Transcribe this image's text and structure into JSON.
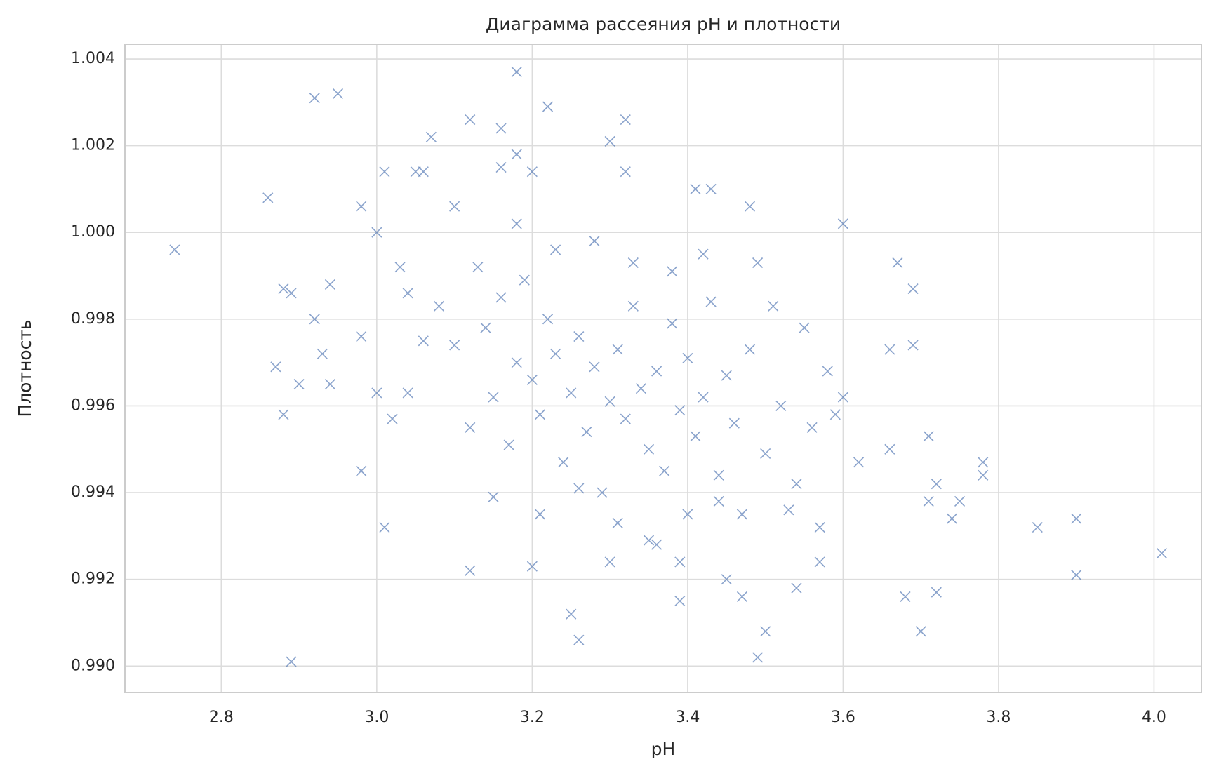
{
  "chart_data": {
    "type": "scatter",
    "title": "Диаграмма рассеяния pH и плотности",
    "xlabel": "pH",
    "ylabel": "Плотность",
    "color": "#4c72b0",
    "marker": "x",
    "grid": true,
    "xlim": [
      2.676,
      4.061
    ],
    "xticks": [
      2.8,
      {
        "value": 3,
        "label": "3.0"
      },
      3.2,
      3.4,
      3.6,
      3.8,
      {
        "value": 4,
        "label": "4.0"
      }
    ],
    "ylim": [
      0.98939,
      1.00434
    ],
    "yticks": [
      {
        "value": 0.99,
        "label": "0.990"
      },
      0.992,
      0.994,
      0.996,
      0.998,
      {
        "value": 1,
        "label": "1.000"
      },
      1.002,
      1.004
    ],
    "x": [
      2.74,
      2.86,
      2.87,
      2.88,
      2.88,
      2.89,
      2.89,
      2.9,
      2.92,
      2.92,
      2.93,
      2.94,
      2.94,
      2.95,
      2.98,
      2.98,
      2.98,
      3.0,
      3.0,
      3.01,
      3.01,
      3.02,
      3.04,
      3.05,
      3.06,
      3.07,
      3.1,
      3.12,
      3.12,
      3.16,
      3.16,
      3.18,
      3.18,
      3.2,
      3.2,
      3.22,
      3.25,
      3.26,
      3.3,
      3.32,
      3.32,
      3.3,
      3.36,
      3.39,
      3.39,
      3.41,
      3.43,
      3.45,
      3.47,
      3.48,
      3.49,
      3.5,
      3.54,
      3.57,
      3.6,
      3.66,
      3.66,
      3.67,
      3.68,
      3.69,
      3.69,
      3.7,
      3.71,
      3.71,
      3.72,
      3.72,
      3.74,
      3.75,
      3.78,
      3.78,
      3.85,
      3.9,
      3.9,
      4.01,
      3.1,
      3.12,
      3.14,
      3.15,
      3.16,
      3.17,
      3.18,
      3.19,
      3.2,
      3.21,
      3.22,
      3.23,
      3.24,
      3.25,
      3.26,
      3.27,
      3.28,
      3.29,
      3.3,
      3.31,
      3.32,
      3.33,
      3.34,
      3.35,
      3.36,
      3.37,
      3.38,
      3.39,
      3.4,
      3.41,
      3.42,
      3.43,
      3.44,
      3.45,
      3.46,
      3.48,
      3.5,
      3.52,
      3.54,
      3.56,
      3.58,
      3.6,
      3.62,
      3.13,
      3.15,
      3.18,
      3.21,
      3.23,
      3.26,
      3.28,
      3.31,
      3.33,
      3.35,
      3.38,
      3.4,
      3.42,
      3.44,
      3.47,
      3.49,
      3.51,
      3.53,
      3.55,
      3.57,
      3.59,
      3.08,
      3.06,
      3.04,
      3.03
    ],
    "y": [
      0.9996,
      1.0008,
      0.9969,
      0.9987,
      0.9958,
      0.9986,
      0.9901,
      0.9965,
      1.0031,
      0.998,
      0.9972,
      0.9988,
      0.9965,
      1.0032,
      1.0006,
      0.9976,
      0.9945,
      1.0,
      0.9963,
      1.0014,
      0.9932,
      0.9957,
      0.9986,
      1.0014,
      1.0014,
      1.0022,
      1.0006,
      1.0026,
      0.9922,
      1.0024,
      1.0015,
      1.0037,
      1.0018,
      1.0014,
      0.9923,
      1.0029,
      0.9912,
      0.9906,
      1.0021,
      1.0026,
      1.0014,
      0.9924,
      0.9928,
      0.9915,
      0.9924,
      1.001,
      1.001,
      0.992,
      0.9916,
      1.0006,
      0.9902,
      0.9908,
      0.9918,
      0.9924,
      1.0002,
      0.9973,
      0.995,
      0.9993,
      0.9916,
      0.9987,
      0.9974,
      0.9908,
      0.9953,
      0.9938,
      0.9942,
      0.9917,
      0.9934,
      0.9938,
      0.9947,
      0.9944,
      0.9932,
      0.9934,
      0.9921,
      0.9926,
      0.9974,
      0.9955,
      0.9978,
      0.9962,
      0.9985,
      0.9951,
      0.997,
      0.9989,
      0.9966,
      0.9958,
      0.998,
      0.9972,
      0.9947,
      0.9963,
      0.9976,
      0.9954,
      0.9969,
      0.994,
      0.9961,
      0.9973,
      0.9957,
      0.9983,
      0.9964,
      0.995,
      0.9968,
      0.9945,
      0.9979,
      0.9959,
      0.9971,
      0.9953,
      0.9962,
      0.9984,
      0.9944,
      0.9967,
      0.9956,
      0.9973,
      0.9949,
      0.996,
      0.9942,
      0.9955,
      0.9968,
      0.9962,
      0.9947,
      0.9992,
      0.9939,
      1.0002,
      0.9935,
      0.9996,
      0.9941,
      0.9998,
      0.9933,
      0.9993,
      0.9929,
      0.9991,
      0.9935,
      0.9995,
      0.9938,
      0.9935,
      0.9993,
      0.9983,
      0.9936,
      0.9978,
      0.9932,
      0.9958,
      0.9983,
      0.9975,
      0.9963,
      0.9992
    ]
  }
}
